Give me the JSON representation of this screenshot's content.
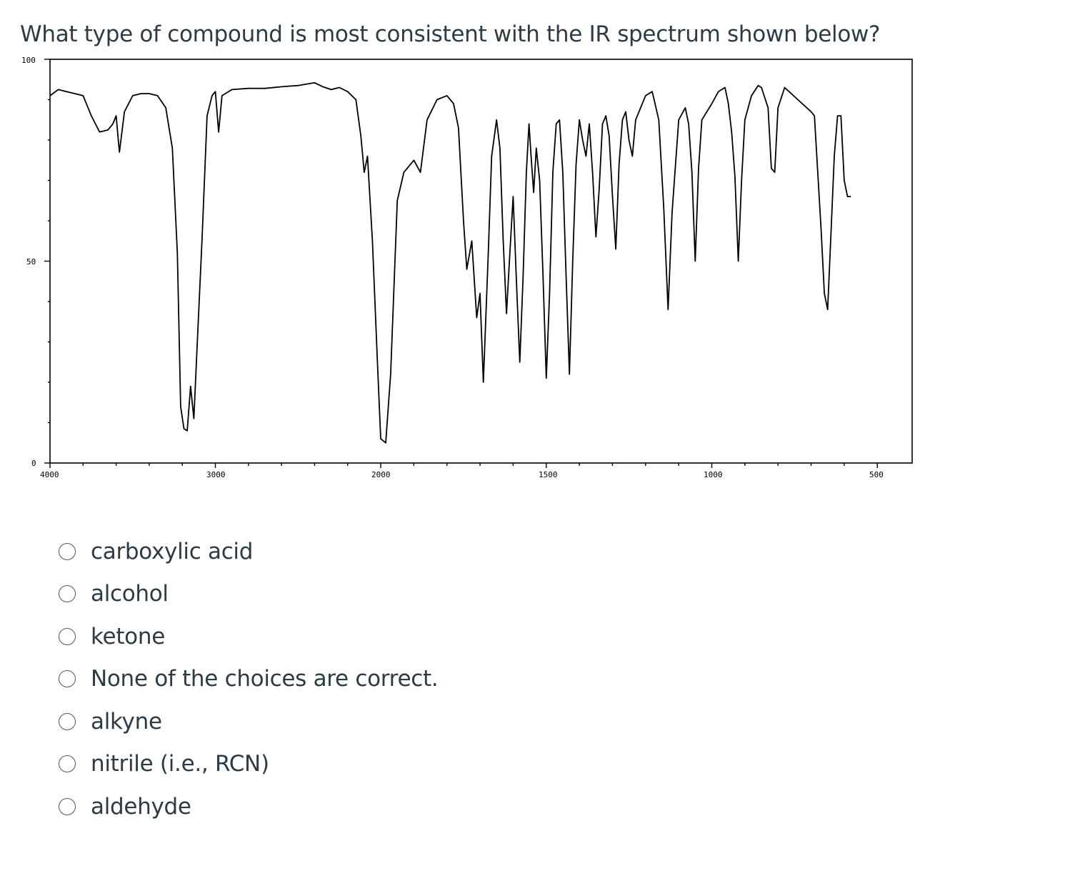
{
  "question": {
    "text": "What type of compound is most consistent with the IR spectrum shown below?"
  },
  "chart_data": {
    "type": "line",
    "xlabel": "",
    "ylabel": "",
    "x_tick_labels": [
      "4000",
      "3000",
      "2000",
      "1500",
      "1000",
      "500"
    ],
    "y_tick_labels": [
      "100",
      "50",
      "0"
    ],
    "y_range": [
      0,
      100
    ],
    "color": "#000000",
    "points": [
      [
        4000,
        91.0
      ],
      [
        3950,
        92.5
      ],
      [
        3900,
        92.0
      ],
      [
        3850,
        91.5
      ],
      [
        3800,
        91.0
      ],
      [
        3750,
        86.0
      ],
      [
        3700,
        82.0
      ],
      [
        3650,
        82.5
      ],
      [
        3620,
        84.0
      ],
      [
        3600,
        86.0
      ],
      [
        3580,
        77.0
      ],
      [
        3550,
        87.0
      ],
      [
        3500,
        91.0
      ],
      [
        3450,
        91.5
      ],
      [
        3400,
        91.5
      ],
      [
        3350,
        91.0
      ],
      [
        3300,
        88.0
      ],
      [
        3260,
        78.0
      ],
      [
        3230,
        52.0
      ],
      [
        3210,
        14.0
      ],
      [
        3190,
        8.5
      ],
      [
        3170,
        8.0
      ],
      [
        3150,
        19.0
      ],
      [
        3130,
        11.0
      ],
      [
        3110,
        29.0
      ],
      [
        3080,
        56.0
      ],
      [
        3050,
        86.0
      ],
      [
        3020,
        91.0
      ],
      [
        3000,
        92.0
      ],
      [
        2980,
        82.0
      ],
      [
        2960,
        91.0
      ],
      [
        2900,
        92.5
      ],
      [
        2800,
        92.8
      ],
      [
        2700,
        92.8
      ],
      [
        2600,
        93.2
      ],
      [
        2500,
        93.5
      ],
      [
        2400,
        94.2
      ],
      [
        2350,
        93.2
      ],
      [
        2300,
        92.5
      ],
      [
        2250,
        93.0
      ],
      [
        2200,
        92.0
      ],
      [
        2150,
        90.0
      ],
      [
        2120,
        81.0
      ],
      [
        2100,
        72.0
      ],
      [
        2080,
        76.0
      ],
      [
        2050,
        55.0
      ],
      [
        2020,
        25.0
      ],
      [
        2000,
        6.0
      ],
      [
        1985,
        5.0
      ],
      [
        1970,
        22.0
      ],
      [
        1950,
        65.0
      ],
      [
        1930,
        72.0
      ],
      [
        1900,
        75.0
      ],
      [
        1880,
        72.0
      ],
      [
        1860,
        85.0
      ],
      [
        1830,
        90.0
      ],
      [
        1800,
        91.0
      ],
      [
        1780,
        89.0
      ],
      [
        1765,
        83.0
      ],
      [
        1750,
        60.0
      ],
      [
        1740,
        48.0
      ],
      [
        1725,
        55.0
      ],
      [
        1710,
        36.0
      ],
      [
        1700,
        42.0
      ],
      [
        1690,
        20.0
      ],
      [
        1675,
        52.0
      ],
      [
        1665,
        76.0
      ],
      [
        1650,
        85.0
      ],
      [
        1640,
        78.0
      ],
      [
        1630,
        55.0
      ],
      [
        1620,
        37.0
      ],
      [
        1610,
        52.0
      ],
      [
        1600,
        66.0
      ],
      [
        1590,
        45.0
      ],
      [
        1580,
        25.0
      ],
      [
        1570,
        46.0
      ],
      [
        1560,
        72.0
      ],
      [
        1552,
        84.0
      ],
      [
        1545,
        75.0
      ],
      [
        1538,
        67.0
      ],
      [
        1530,
        78.0
      ],
      [
        1520,
        70.0
      ],
      [
        1510,
        47.0
      ],
      [
        1500,
        21.0
      ],
      [
        1490,
        42.0
      ],
      [
        1480,
        72.0
      ],
      [
        1470,
        84.0
      ],
      [
        1460,
        85.0
      ],
      [
        1450,
        72.0
      ],
      [
        1440,
        46.0
      ],
      [
        1430,
        22.0
      ],
      [
        1420,
        50.0
      ],
      [
        1410,
        74.0
      ],
      [
        1400,
        85.0
      ],
      [
        1390,
        80.0
      ],
      [
        1380,
        76.0
      ],
      [
        1370,
        84.0
      ],
      [
        1360,
        72.0
      ],
      [
        1350,
        56.0
      ],
      [
        1340,
        68.0
      ],
      [
        1330,
        84.0
      ],
      [
        1320,
        86.0
      ],
      [
        1310,
        81.0
      ],
      [
        1300,
        66.0
      ],
      [
        1290,
        53.0
      ],
      [
        1280,
        74.0
      ],
      [
        1270,
        85.0
      ],
      [
        1260,
        87.0
      ],
      [
        1250,
        80.0
      ],
      [
        1240,
        76.0
      ],
      [
        1230,
        85.0
      ],
      [
        1200,
        91.0
      ],
      [
        1180,
        92.0
      ],
      [
        1160,
        85.0
      ],
      [
        1145,
        63.0
      ],
      [
        1132,
        38.0
      ],
      [
        1120,
        62.0
      ],
      [
        1100,
        85.0
      ],
      [
        1080,
        88.0
      ],
      [
        1070,
        84.0
      ],
      [
        1060,
        72.0
      ],
      [
        1050,
        50.0
      ],
      [
        1040,
        73.0
      ],
      [
        1030,
        85.0
      ],
      [
        1000,
        89.0
      ],
      [
        980,
        92.0
      ],
      [
        960,
        93.0
      ],
      [
        950,
        89.0
      ],
      [
        940,
        82.0
      ],
      [
        930,
        71.0
      ],
      [
        920,
        50.0
      ],
      [
        910,
        70.0
      ],
      [
        900,
        85.0
      ],
      [
        880,
        91.0
      ],
      [
        860,
        93.5
      ],
      [
        850,
        93.0
      ],
      [
        830,
        88.0
      ],
      [
        820,
        73.0
      ],
      [
        810,
        72.0
      ],
      [
        800,
        88.0
      ],
      [
        780,
        93.0
      ],
      [
        740,
        90.0
      ],
      [
        700,
        87.0
      ],
      [
        690,
        86.0
      ],
      [
        670,
        58.0
      ],
      [
        660,
        42.0
      ],
      [
        650,
        38.0
      ],
      [
        640,
        57.0
      ],
      [
        630,
        76.0
      ],
      [
        620,
        86.0
      ],
      [
        610,
        86.0
      ],
      [
        600,
        70.0
      ],
      [
        590,
        66.0
      ],
      [
        580,
        66.0
      ]
    ]
  },
  "answers": {
    "options": [
      {
        "label": "carboxylic acid"
      },
      {
        "label": "alcohol"
      },
      {
        "label": "ketone"
      },
      {
        "label": "None of the choices are correct."
      },
      {
        "label": "alkyne"
      },
      {
        "label": "nitrile (i.e., RCN)"
      },
      {
        "label": "aldehyde"
      }
    ]
  }
}
